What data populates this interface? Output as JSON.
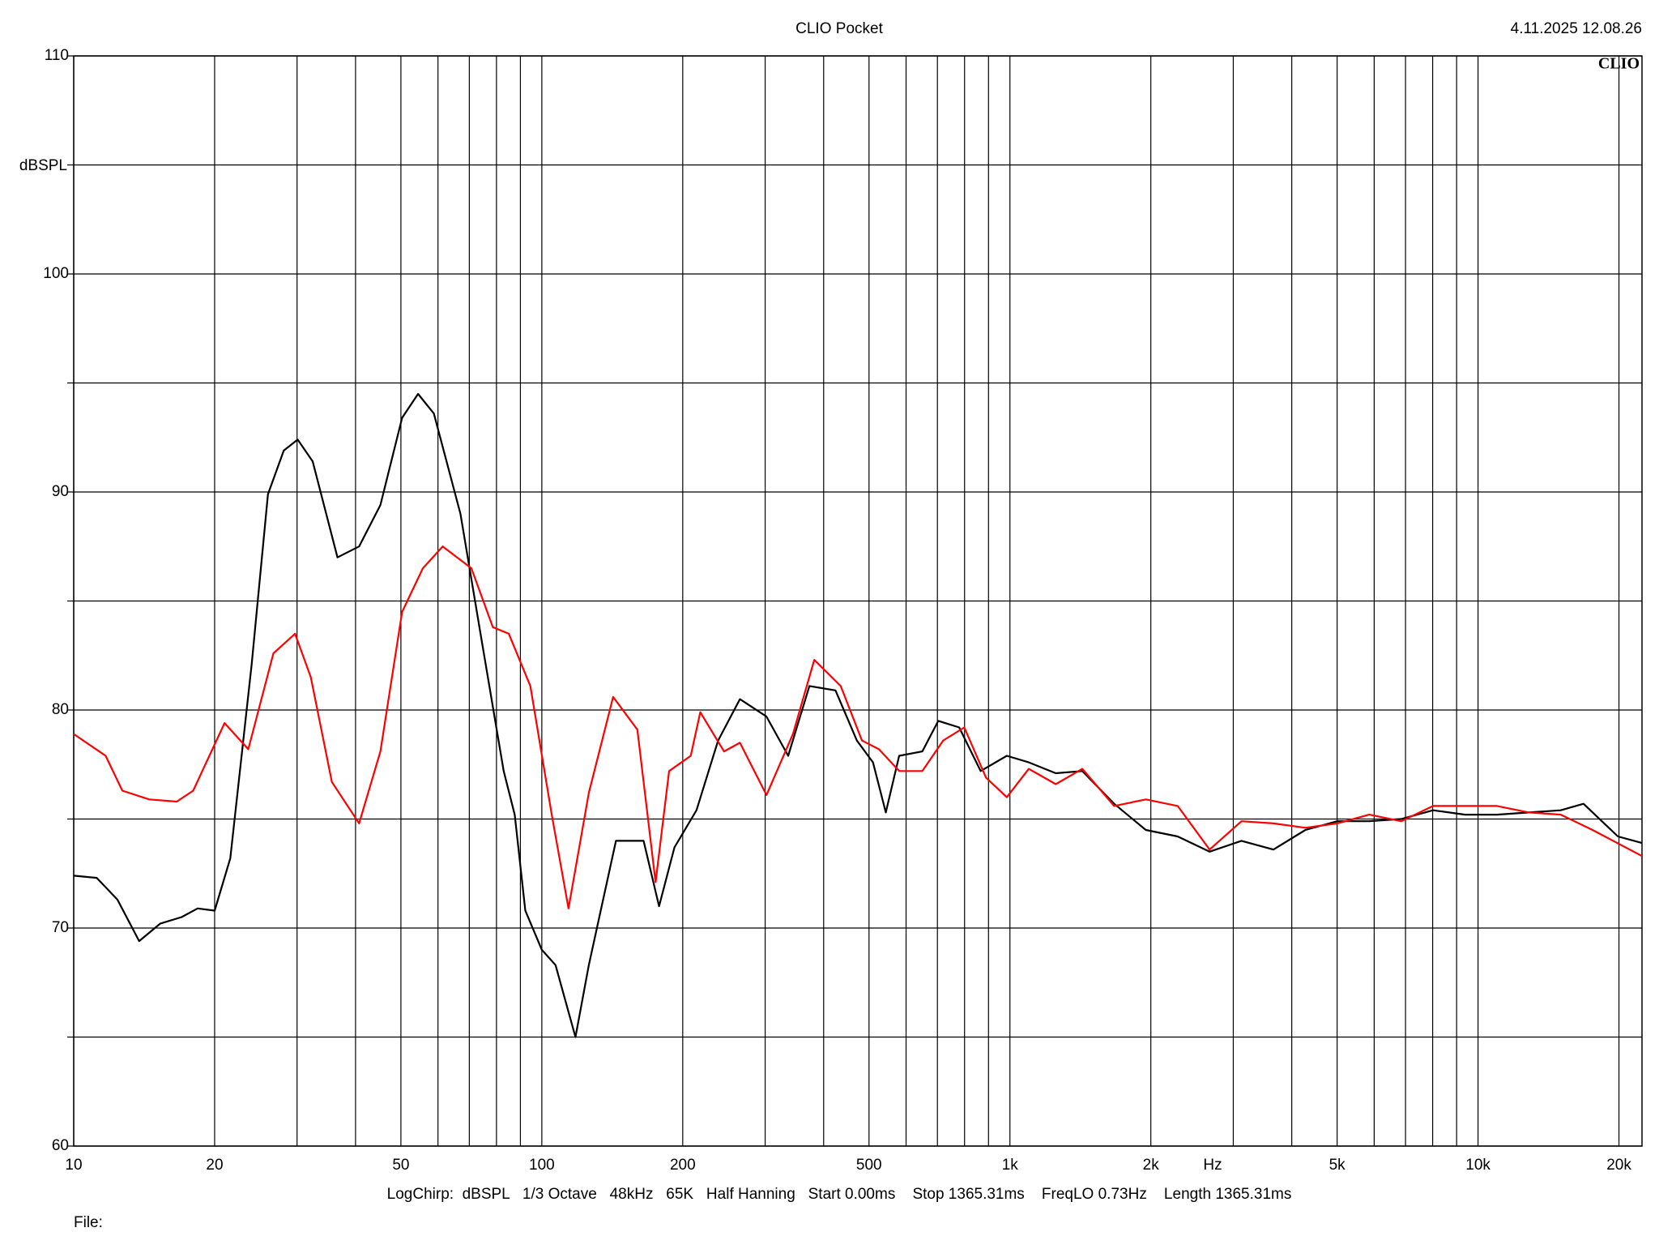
{
  "chart_data": {
    "type": "line",
    "title": "CLIO Pocket",
    "timestamp": "4.11.2025 12.08.26",
    "logo": "CLIO",
    "y_label": "dBSPL",
    "x_label": "Hz",
    "footer": "LogChirp:  dBSPL   1/3 Octave   48kHz   65K   Half Hanning   Start 0.00ms    Stop 1365.31ms    FreqLO 0.73Hz    Length 1365.31ms",
    "file_label": "File:",
    "xscale": "log",
    "xlim": [
      10,
      22400
    ],
    "ylim": [
      60,
      110
    ],
    "xticks": [
      10,
      20,
      50,
      100,
      200,
      500,
      {
        "value": 1000,
        "label": "1k"
      },
      {
        "value": 2000,
        "label": "2k"
      },
      {
        "value": 5000,
        "label": "5k"
      },
      {
        "value": 10000,
        "label": "10k"
      },
      {
        "value": 20000,
        "label": "20k"
      }
    ],
    "xminor": [
      30,
      40,
      60,
      70,
      80,
      90,
      300,
      400,
      600,
      700,
      800,
      900,
      3000,
      4000,
      6000,
      7000,
      8000,
      9000
    ],
    "yticks": [
      60,
      70,
      80,
      90,
      100,
      110
    ],
    "yminor": [
      65,
      75,
      85,
      95,
      105
    ],
    "grid": true,
    "series": [
      {
        "name": "black",
        "color": "#000000",
        "x": [
          10,
          11.2,
          12.4,
          13.8,
          15.3,
          17.0,
          18.4,
          20,
          21.6,
          24.0,
          26.0,
          28.1,
          30.1,
          32.4,
          36.6,
          40.7,
          45.2,
          50.3,
          54.4,
          58.8,
          67.0,
          74.5,
          82.9,
          87.5,
          92.2,
          100,
          107,
          118,
          126,
          144,
          165,
          178,
          192,
          214,
          238,
          265,
          302,
          336,
          373,
          424,
          471,
          510,
          543,
          580,
          650,
          703,
          779,
          866,
          985,
          1097,
          1253,
          1428,
          1670,
          1951,
          2282,
          2670,
          3124,
          3655,
          4277,
          5004,
          5855,
          6851,
          8016,
          9378,
          10973,
          12840,
          15022,
          16800,
          19900,
          22400
        ],
        "values": [
          72.4,
          72.3,
          71.3,
          69.4,
          70.2,
          70.5,
          70.9,
          70.8,
          73.2,
          82.1,
          89.9,
          91.9,
          92.4,
          91.4,
          87.0,
          87.5,
          89.4,
          93.4,
          94.5,
          93.6,
          89.0,
          83.1,
          77.2,
          75.2,
          70.8,
          69.0,
          68.3,
          65.0,
          68.3,
          74.0,
          74.0,
          71.0,
          73.7,
          75.4,
          78.6,
          80.5,
          79.7,
          77.9,
          81.1,
          80.9,
          78.6,
          77.6,
          75.3,
          77.9,
          78.1,
          79.5,
          79.2,
          77.2,
          77.9,
          77.6,
          77.1,
          77.2,
          75.7,
          74.5,
          74.2,
          73.5,
          74.0,
          73.6,
          74.5,
          74.9,
          74.9,
          75.0,
          75.4,
          75.2,
          75.2,
          75.3,
          75.4,
          75.7,
          74.2,
          73.9
        ]
      },
      {
        "name": "red",
        "color": "#ff0000",
        "x": [
          10,
          11.7,
          12.7,
          14.5,
          16.6,
          18.0,
          21.0,
          23.6,
          26.7,
          29.7,
          32.1,
          35.6,
          40.7,
          45.2,
          50.3,
          55.7,
          61.4,
          70.7,
          78.6,
          85.0,
          94.5,
          105,
          114,
          126,
          142,
          160,
          175,
          187,
          208,
          218,
          245,
          265,
          302,
          344,
          382,
          435,
          483,
          525,
          580,
          650,
          720,
          799,
          889,
          985,
          1097,
          1253,
          1428,
          1670,
          1951,
          2282,
          2670,
          3124,
          3655,
          4277,
          5004,
          5855,
          6851,
          8016,
          9378,
          10973,
          12840,
          15022,
          17560,
          22400
        ],
        "values": [
          78.9,
          77.9,
          76.3,
          75.9,
          75.8,
          76.3,
          79.4,
          78.2,
          82.6,
          83.5,
          81.5,
          76.7,
          74.8,
          78.1,
          84.5,
          86.5,
          87.5,
          86.5,
          83.8,
          83.5,
          81.1,
          75.2,
          70.9,
          76.2,
          80.6,
          79.1,
          72.1,
          77.2,
          77.9,
          79.9,
          78.1,
          78.5,
          76.1,
          78.9,
          82.3,
          81.1,
          78.6,
          78.2,
          77.2,
          77.2,
          78.6,
          79.2,
          76.9,
          76.0,
          77.3,
          76.6,
          77.3,
          75.6,
          75.9,
          75.6,
          73.6,
          74.9,
          74.8,
          74.6,
          74.8,
          75.2,
          74.9,
          75.6,
          75.6,
          75.6,
          75.3,
          75.2,
          74.5,
          73.3
        ]
      }
    ]
  }
}
